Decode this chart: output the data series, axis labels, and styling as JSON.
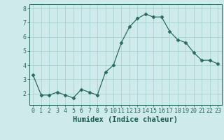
{
  "x": [
    0,
    1,
    2,
    3,
    4,
    5,
    6,
    7,
    8,
    9,
    10,
    11,
    12,
    13,
    14,
    15,
    16,
    17,
    18,
    19,
    20,
    21,
    22,
    23
  ],
  "y": [
    3.3,
    1.9,
    1.9,
    2.1,
    1.9,
    1.7,
    2.3,
    2.1,
    1.9,
    3.5,
    4.0,
    5.6,
    6.7,
    7.3,
    7.6,
    7.4,
    7.4,
    6.4,
    5.8,
    5.6,
    4.9,
    4.35,
    4.35,
    4.1
  ],
  "line_color": "#2a6b5e",
  "marker": "D",
  "marker_size": 2.5,
  "bg_color": "#ceeaea",
  "grid_color": "#a8d4d4",
  "xlabel": "Humidex (Indice chaleur)",
  "ylim": [
    1.2,
    8.3
  ],
  "xlim": [
    -0.5,
    23.5
  ],
  "yticks": [
    2,
    3,
    4,
    5,
    6,
    7,
    8
  ],
  "xticks": [
    0,
    1,
    2,
    3,
    4,
    5,
    6,
    7,
    8,
    9,
    10,
    11,
    12,
    13,
    14,
    15,
    16,
    17,
    18,
    19,
    20,
    21,
    22,
    23
  ],
  "tick_color": "#2a6b5e",
  "label_color": "#1a5a4e",
  "xlabel_fontsize": 7.5,
  "tick_fontsize": 6.0
}
